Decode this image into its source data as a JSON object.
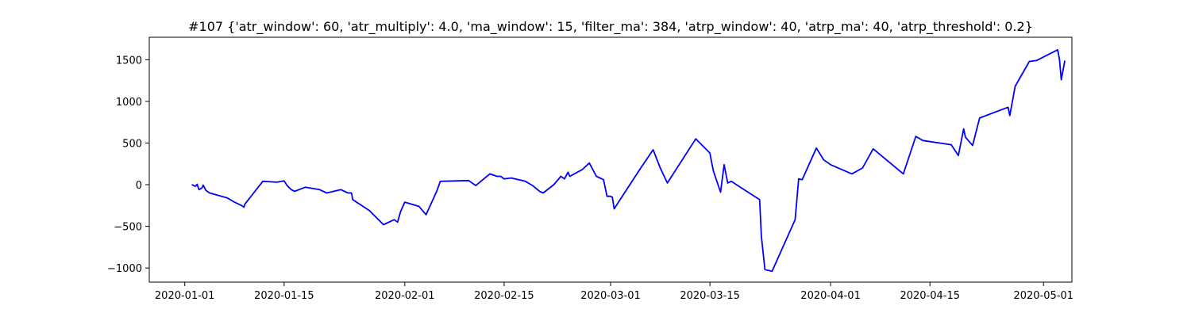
{
  "chart_data": {
    "type": "line",
    "title": "#107 {'atr_window': 60, 'atr_multiply': 4.0, 'ma_window': 15, 'filter_ma': 384, 'atrp_window': 40, 'atrp_ma': 40, 'atrp_threshold': 0.2}",
    "xlabel": "",
    "ylabel": "",
    "grid": false,
    "xlim": [
      "2019-12-27",
      "2020-05-05"
    ],
    "ylim": [
      -1170,
      1770
    ],
    "x_ticks": [
      "2020-01-01",
      "2020-01-15",
      "2020-02-01",
      "2020-02-15",
      "2020-03-01",
      "2020-03-15",
      "2020-04-01",
      "2020-04-15",
      "2020-05-01"
    ],
    "y_ticks": [
      -1000,
      -500,
      0,
      500,
      1000,
      1500
    ],
    "series": [
      {
        "color": "#0000ff",
        "points": [
          [
            "2020-01-02",
            0
          ],
          [
            "2020-01-02 12:00",
            -20
          ],
          [
            "2020-01-02 18:00",
            5
          ],
          [
            "2020-01-03",
            -60
          ],
          [
            "2020-01-03 10:00",
            -40
          ],
          [
            "2020-01-03 14:00",
            -5
          ],
          [
            "2020-01-04",
            -70
          ],
          [
            "2020-01-04 12:00",
            -100
          ],
          [
            "2020-01-07",
            -160
          ],
          [
            "2020-01-08",
            -210
          ],
          [
            "2020-01-09",
            -250
          ],
          [
            "2020-01-09 08:00",
            -270
          ],
          [
            "2020-01-09 12:00",
            -230
          ],
          [
            "2020-01-12",
            40
          ],
          [
            "2020-01-14",
            30
          ],
          [
            "2020-01-15",
            45
          ],
          [
            "2020-01-15 10:00",
            -10
          ],
          [
            "2020-01-16",
            -60
          ],
          [
            "2020-01-16 12:00",
            -80
          ],
          [
            "2020-01-18",
            -30
          ],
          [
            "2020-01-20",
            -60
          ],
          [
            "2020-01-21",
            -100
          ],
          [
            "2020-01-23",
            -60
          ],
          [
            "2020-01-24",
            -100
          ],
          [
            "2020-01-24 12:00",
            -100
          ],
          [
            "2020-01-24 16:00",
            -180
          ],
          [
            "2020-01-27",
            -310
          ],
          [
            "2020-01-29",
            -480
          ],
          [
            "2020-01-30",
            -440
          ],
          [
            "2020-01-30 12:00",
            -420
          ],
          [
            "2020-01-31",
            -450
          ],
          [
            "2020-01-31 06:00",
            -370
          ],
          [
            "2020-01-31 10:00",
            -320
          ],
          [
            "2020-02-01",
            -210
          ],
          [
            "2020-02-03",
            -260
          ],
          [
            "2020-02-04",
            -360
          ],
          [
            "2020-02-05 12:00",
            -80
          ],
          [
            "2020-02-06",
            40
          ],
          [
            "2020-02-10",
            50
          ],
          [
            "2020-02-11",
            -10
          ],
          [
            "2020-02-13",
            130
          ],
          [
            "2020-02-14",
            100
          ],
          [
            "2020-02-14 12:00",
            100
          ],
          [
            "2020-02-15",
            70
          ],
          [
            "2020-02-16",
            80
          ],
          [
            "2020-02-18",
            40
          ],
          [
            "2020-02-19",
            -10
          ],
          [
            "2020-02-20",
            -80
          ],
          [
            "2020-02-20 12:00",
            -100
          ],
          [
            "2020-02-22",
            0
          ],
          [
            "2020-02-23",
            100
          ],
          [
            "2020-02-23 12:00",
            70
          ],
          [
            "2020-02-24",
            150
          ],
          [
            "2020-02-24 06:00",
            100
          ],
          [
            "2020-02-26",
            180
          ],
          [
            "2020-02-27",
            260
          ],
          [
            "2020-02-28",
            100
          ],
          [
            "2020-02-29",
            60
          ],
          [
            "2020-02-29 12:00",
            -140
          ],
          [
            "2020-03-01",
            -140
          ],
          [
            "2020-03-01 06:00",
            -150
          ],
          [
            "2020-03-01 12:00",
            -290
          ],
          [
            "2020-03-05",
            170
          ],
          [
            "2020-03-07",
            420
          ],
          [
            "2020-03-08",
            200
          ],
          [
            "2020-03-09",
            20
          ],
          [
            "2020-03-13",
            550
          ],
          [
            "2020-03-15",
            380
          ],
          [
            "2020-03-15 06:00",
            260
          ],
          [
            "2020-03-15 12:00",
            160
          ],
          [
            "2020-03-16 12:00",
            -90
          ],
          [
            "2020-03-17",
            240
          ],
          [
            "2020-03-17 12:00",
            20
          ],
          [
            "2020-03-18",
            40
          ],
          [
            "2020-03-20",
            -70
          ],
          [
            "2020-03-22",
            -180
          ],
          [
            "2020-03-22 06:00",
            -620
          ],
          [
            "2020-03-22 18:00",
            -1020
          ],
          [
            "2020-03-23 18:00",
            -1040
          ],
          [
            "2020-03-27",
            -420
          ],
          [
            "2020-03-27 12:00",
            70
          ],
          [
            "2020-03-28",
            60
          ],
          [
            "2020-03-30",
            440
          ],
          [
            "2020-03-31",
            300
          ],
          [
            "2020-04-01",
            240
          ],
          [
            "2020-04-04",
            130
          ],
          [
            "2020-04-05 12:00",
            200
          ],
          [
            "2020-04-07",
            430
          ],
          [
            "2020-04-11 06:00",
            130
          ],
          [
            "2020-04-13",
            580
          ],
          [
            "2020-04-14",
            530
          ],
          [
            "2020-04-18",
            480
          ],
          [
            "2020-04-19",
            350
          ],
          [
            "2020-04-19 18:00",
            670
          ],
          [
            "2020-04-20",
            570
          ],
          [
            "2020-04-21",
            470
          ],
          [
            "2020-04-22",
            800
          ],
          [
            "2020-04-26",
            930
          ],
          [
            "2020-04-26 06:00",
            830
          ],
          [
            "2020-04-27",
            1180
          ],
          [
            "2020-04-29",
            1480
          ],
          [
            "2020-04-30",
            1490
          ],
          [
            "2020-05-03",
            1620
          ],
          [
            "2020-05-03 06:00",
            1500
          ],
          [
            "2020-05-03 12:00",
            1260
          ],
          [
            "2020-05-04",
            1490
          ]
        ]
      }
    ]
  }
}
